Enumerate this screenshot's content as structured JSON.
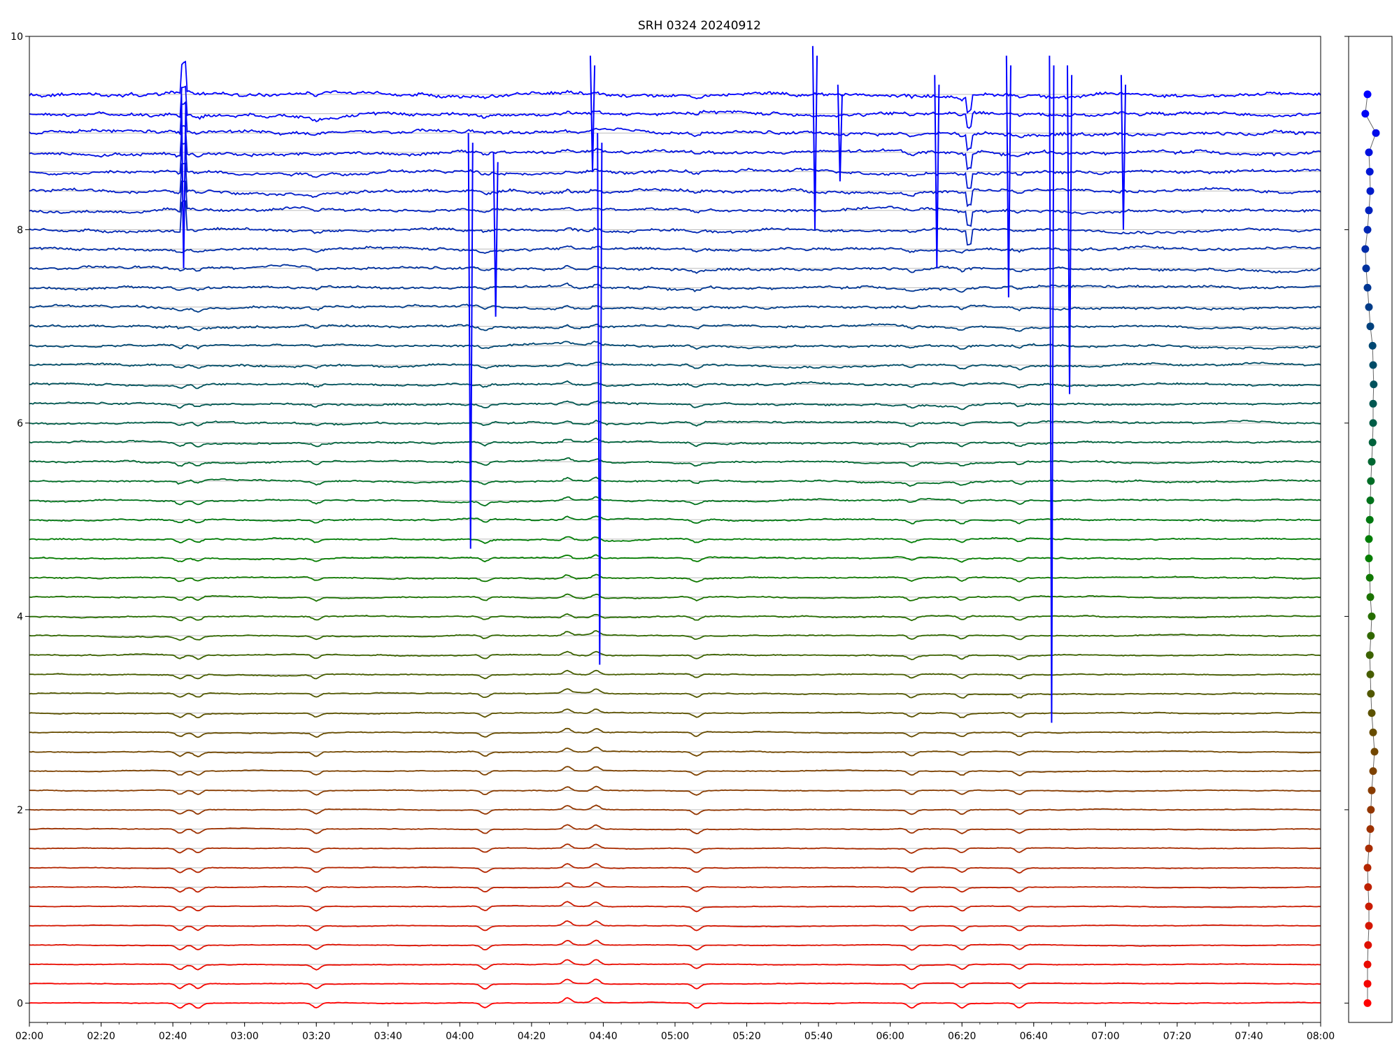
{
  "chart_data": {
    "type": "line",
    "title": "SRH 0324 20240912",
    "xlabel": "",
    "ylabel": "",
    "xlim": [
      "02:00",
      "08:00"
    ],
    "ylim": [
      0,
      10
    ],
    "grid": true,
    "x_tick_labels": [
      "02:00",
      "02:20",
      "02:40",
      "03:00",
      "03:20",
      "03:40",
      "04:00",
      "04:20",
      "04:40",
      "05:00",
      "05:20",
      "05:40",
      "06:00",
      "06:20",
      "06:40",
      "07:00",
      "07:20",
      "07:40",
      "08:00"
    ],
    "y_tick_labels": [
      "0",
      "2",
      "4",
      "6",
      "8",
      "10"
    ],
    "x_ticks_minutes": [
      0,
      20,
      40,
      60,
      80,
      100,
      120,
      140,
      160,
      180,
      200,
      220,
      240,
      260,
      280,
      300,
      320,
      340,
      360
    ],
    "y_ticks": [
      0,
      2,
      4,
      6,
      8,
      10
    ],
    "series_count": 48,
    "series_baselines": [
      0,
      0.2,
      0.4,
      0.6,
      0.8,
      1.0,
      1.2,
      1.4,
      1.6,
      1.8,
      2.0,
      2.2,
      2.4,
      2.6,
      2.8,
      3.0,
      3.2,
      3.4,
      3.6,
      3.8,
      4.0,
      4.2,
      4.4,
      4.6,
      4.8,
      5.0,
      5.2,
      5.4,
      5.6,
      5.8,
      6.0,
      6.2,
      6.4,
      6.6,
      6.8,
      7.0,
      7.2,
      7.4,
      7.6,
      7.8,
      8.0,
      8.2,
      8.4,
      8.6,
      8.8,
      9.0,
      9.2,
      9.4
    ],
    "common_events_minutes": [
      42,
      47,
      80,
      127,
      150,
      158,
      186,
      246,
      260,
      276
    ],
    "color_start": "#ff0000",
    "color_mid": "#008000",
    "color_end": "#0000ff",
    "side_panel": {
      "type": "scatter",
      "points_count": 48,
      "x_offsets": [
        0,
        0,
        0,
        0.02,
        0.05,
        0.05,
        0.02,
        0,
        0.05,
        0.1,
        0.12,
        0.15,
        0.2,
        0.25,
        0.2,
        0.15,
        0.12,
        0.1,
        0.08,
        0.12,
        0.15,
        0.1,
        0.08,
        0.05,
        0.05,
        0.08,
        0.1,
        0.12,
        0.15,
        0.18,
        0.2,
        0.2,
        0.22,
        0.2,
        0.18,
        0.1,
        0.05,
        0.0,
        -0.05,
        -0.08,
        0.0,
        0.05,
        0.1,
        0.08,
        0.05,
        0.3,
        -0.08,
        0.0
      ]
    }
  }
}
